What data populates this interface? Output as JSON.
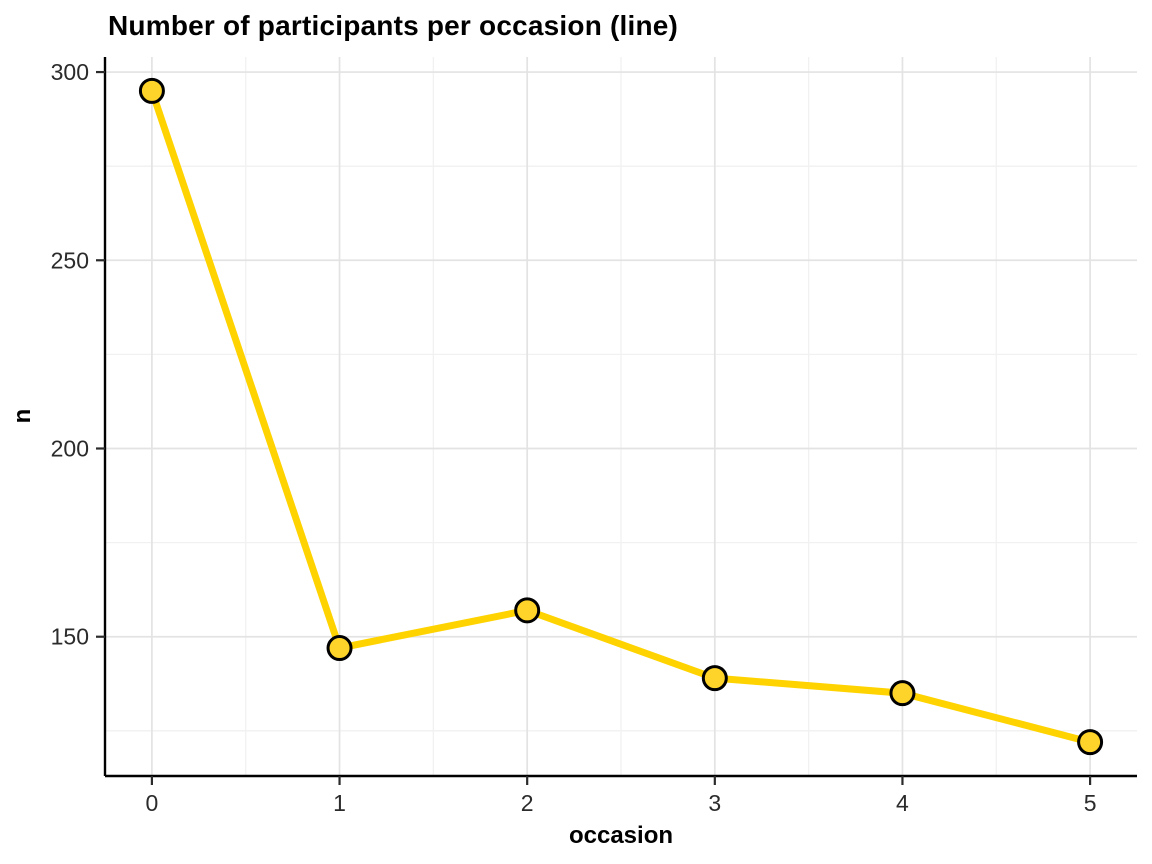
{
  "chart_data": {
    "type": "line",
    "title": "Number of participants per occasion (line)",
    "xlabel": "occasion",
    "ylabel": "n",
    "x": [
      0,
      1,
      2,
      3,
      4,
      5
    ],
    "values": [
      295,
      147,
      157,
      139,
      135,
      122
    ],
    "x_ticks": [
      0,
      1,
      2,
      3,
      4,
      5
    ],
    "y_ticks": [
      150,
      200,
      250,
      300
    ],
    "xlim": [
      -0.25,
      5.25
    ],
    "ylim": [
      113,
      304
    ],
    "grid": "major+minor",
    "legend": "none",
    "colors": {
      "line": "#FFD300",
      "point_fill": "#FFD42A",
      "point_stroke": "#000000",
      "axis": "#000000",
      "tick_label": "#2b2b2b",
      "grid_major": "#E3E3E3",
      "grid_minor": "#F1F1F1",
      "background": "#FFFFFF"
    }
  }
}
